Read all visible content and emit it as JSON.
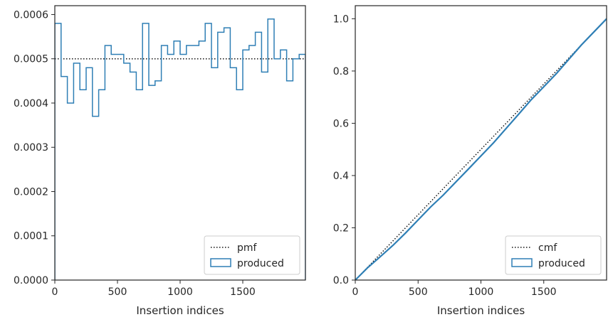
{
  "colors": {
    "produced": "#2f7fb5",
    "reference": "#111111",
    "axes": "#262626"
  },
  "chart_data": [
    {
      "type": "step",
      "xlabel": "Insertion indices",
      "ylabel": "",
      "xlim": [
        0,
        2000
      ],
      "ylim": [
        0,
        0.00062
      ],
      "xticks": [
        0,
        500,
        1000,
        1500
      ],
      "xtick_labels": [
        "0",
        "500",
        "1000",
        "1500"
      ],
      "yticks": [
        0,
        0.0001,
        0.0002,
        0.0003,
        0.0004,
        0.0005,
        0.0006
      ],
      "ytick_labels": [
        "0.0000",
        "0.0001",
        "0.0002",
        "0.0003",
        "0.0004",
        "0.0005",
        "0.0006"
      ],
      "legend_position": "lower-right",
      "series": [
        {
          "name": "pmf",
          "style": "dotted",
          "x": [
            0,
            2000
          ],
          "values": [
            0.0005,
            0.0005
          ]
        },
        {
          "name": "produced",
          "style": "step-histogram",
          "bin_width": 50,
          "bin_starts": [
            0,
            50,
            100,
            150,
            200,
            250,
            300,
            350,
            400,
            450,
            500,
            550,
            600,
            650,
            700,
            750,
            800,
            850,
            900,
            950,
            1000,
            1050,
            1100,
            1150,
            1200,
            1250,
            1300,
            1350,
            1400,
            1450,
            1500,
            1550,
            1600,
            1650,
            1700,
            1750,
            1800,
            1850,
            1900,
            1950
          ],
          "values": [
            0.00058,
            0.00046,
            0.0004,
            0.00049,
            0.00043,
            0.00048,
            0.00037,
            0.00043,
            0.00053,
            0.00051,
            0.00051,
            0.00049,
            0.00047,
            0.00043,
            0.00058,
            0.00044,
            0.00045,
            0.00053,
            0.00051,
            0.00054,
            0.00051,
            0.00053,
            0.00053,
            0.00054,
            0.00058,
            0.00048,
            0.00056,
            0.00057,
            0.00048,
            0.00043,
            0.00052,
            0.00053,
            0.00056,
            0.00047,
            0.00059,
            0.0005,
            0.00052,
            0.00045,
            0.0005,
            0.00051
          ]
        }
      ]
    },
    {
      "type": "line",
      "xlabel": "Insertion indices",
      "ylabel": "",
      "xlim": [
        0,
        2000
      ],
      "ylim": [
        0,
        1.05
      ],
      "xticks": [
        0,
        500,
        1000,
        1500
      ],
      "xtick_labels": [
        "0",
        "500",
        "1000",
        "1500"
      ],
      "yticks": [
        0,
        0.2,
        0.4,
        0.6,
        0.8,
        1.0
      ],
      "ytick_labels": [
        "0.0",
        "0.2",
        "0.4",
        "0.6",
        "0.8",
        "1.0"
      ],
      "legend_position": "lower-right",
      "series": [
        {
          "name": "cmf",
          "style": "dotted",
          "x": [
            0,
            2000
          ],
          "values": [
            0,
            1
          ]
        },
        {
          "name": "produced",
          "style": "solid",
          "x": [
            0,
            100,
            200,
            300,
            400,
            500,
            600,
            700,
            800,
            900,
            1000,
            1100,
            1200,
            1300,
            1400,
            1500,
            1600,
            1700,
            1800,
            1900,
            2000
          ],
          "values": [
            0,
            0.048,
            0.09,
            0.133,
            0.18,
            0.23,
            0.28,
            0.325,
            0.375,
            0.425,
            0.475,
            0.525,
            0.58,
            0.635,
            0.69,
            0.74,
            0.79,
            0.845,
            0.9,
            0.95,
            1.0
          ]
        }
      ]
    }
  ]
}
